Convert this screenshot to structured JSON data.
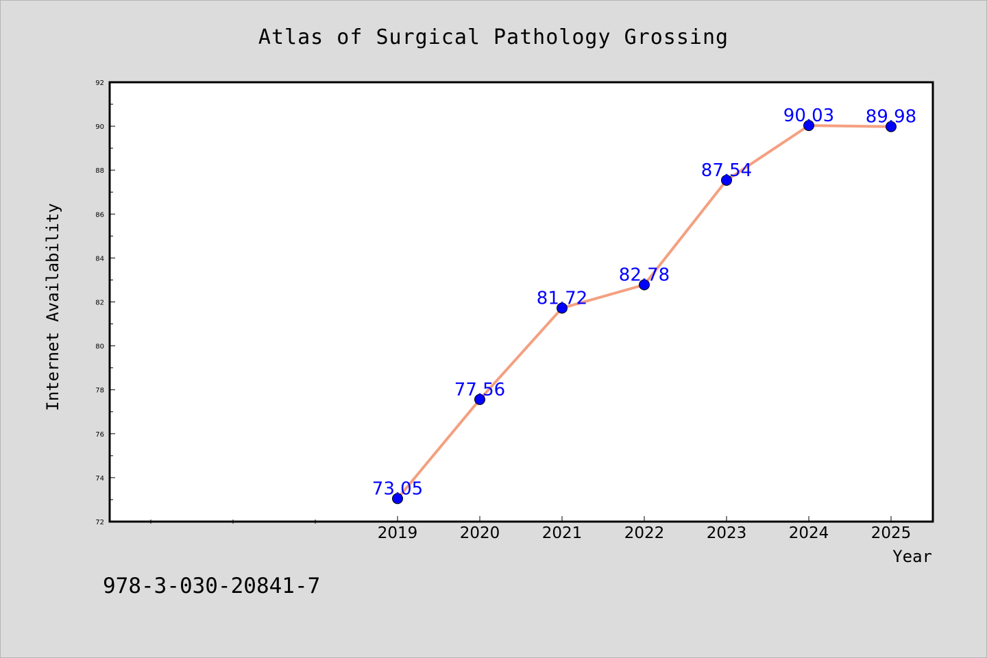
{
  "chart_data": {
    "type": "line",
    "title": "Atlas of Surgical Pathology Grossing",
    "xlabel": "Year",
    "ylabel": "Internet Availability",
    "x": [
      "2019",
      "2020",
      "2021",
      "2022",
      "2023",
      "2024",
      "2025"
    ],
    "series": [
      {
        "values": [
          73.05,
          77.56,
          81.72,
          82.78,
          87.54,
          90.03,
          89.98
        ]
      }
    ],
    "data_labels": [
      "73.05",
      "77.56",
      "81.72",
      "82.78",
      "87.54",
      "90.03",
      "89.98"
    ],
    "ylim": [
      72,
      92
    ],
    "yticks": [
      "72",
      "74",
      "76",
      "78",
      "80",
      "82",
      "84",
      "86",
      "88",
      "90",
      "92"
    ],
    "grid": false,
    "legend": "none",
    "colors": {
      "line": "#f4a081",
      "marker": "#0000ff",
      "data_label": "#0000ff",
      "background": "#dcdcdc",
      "plot_area": "#ffffff"
    }
  },
  "footer_text": "978-3-030-20841-7"
}
